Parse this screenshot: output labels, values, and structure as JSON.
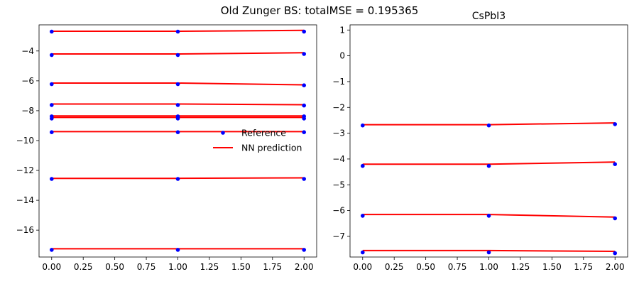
{
  "suptitle": "Old Zunger BS: totalMSE = 0.195365",
  "colors": {
    "reference": "#0000ff",
    "prediction": "#ff0000"
  },
  "chart_data": [
    {
      "type": "line",
      "title": "",
      "xlabel": "",
      "ylabel": "",
      "xlim": [
        -0.1,
        2.1
      ],
      "ylim": [
        -17.8,
        -2.25
      ],
      "xticks": [
        "0.00",
        "0.25",
        "0.50",
        "0.75",
        "1.00",
        "1.25",
        "1.50",
        "1.75",
        "2.00"
      ],
      "xtick_values": [
        0,
        0.25,
        0.5,
        0.75,
        1,
        1.25,
        1.5,
        1.75,
        2
      ],
      "yticks": [
        "−16",
        "−14",
        "−12",
        "−10",
        "−8",
        "−6",
        "−4"
      ],
      "ytick_values": [
        -16,
        -14,
        -12,
        -10,
        -8,
        -6,
        -4
      ],
      "legend": {
        "position": "center-right",
        "entries": [
          {
            "label": "Reference",
            "style": "marker"
          },
          {
            "label": "NN prediction",
            "style": "line"
          }
        ]
      },
      "x": [
        0,
        1,
        2
      ],
      "reference": [
        [
          -2.7,
          -2.7,
          -2.7
        ],
        [
          -4.27,
          -4.27,
          -4.2
        ],
        [
          -6.22,
          -6.22,
          -6.3
        ],
        [
          -7.62,
          -7.62,
          -7.65
        ],
        [
          -8.38,
          -8.38,
          -8.38
        ],
        [
          -8.52,
          -8.52,
          -8.52
        ],
        [
          -9.44,
          -9.44,
          -9.44
        ],
        [
          -12.57,
          -12.57,
          -12.57
        ],
        [
          -17.32,
          -17.32,
          -17.32
        ]
      ],
      "prediction": [
        [
          -2.68,
          -2.68,
          -2.62
        ],
        [
          -4.2,
          -4.2,
          -4.12
        ],
        [
          -6.15,
          -6.15,
          -6.27
        ],
        [
          -7.55,
          -7.55,
          -7.6
        ],
        [
          -8.35,
          -8.35,
          -8.35
        ],
        [
          -8.45,
          -8.45,
          -8.45
        ],
        [
          -9.4,
          -9.4,
          -9.4
        ],
        [
          -12.53,
          -12.53,
          -12.5
        ],
        [
          -17.25,
          -17.25,
          -17.25
        ]
      ]
    },
    {
      "type": "line",
      "title": "CsPbI3",
      "xlabel": "",
      "ylabel": "",
      "xlim": [
        -0.1,
        2.1
      ],
      "ylim": [
        -7.8,
        1.2
      ],
      "xticks": [
        "0.00",
        "0.25",
        "0.50",
        "0.75",
        "1.00",
        "1.25",
        "1.50",
        "1.75",
        "2.00"
      ],
      "xtick_values": [
        0,
        0.25,
        0.5,
        0.75,
        1,
        1.25,
        1.5,
        1.75,
        2
      ],
      "yticks": [
        "−7",
        "−6",
        "−5",
        "−4",
        "−3",
        "−2",
        "−1",
        "0",
        "1"
      ],
      "ytick_values": [
        -7,
        -6,
        -5,
        -4,
        -3,
        -2,
        -1,
        0,
        1
      ],
      "x": [
        0,
        1,
        2
      ],
      "reference": [
        [
          -2.7,
          -2.7,
          -2.65
        ],
        [
          -4.27,
          -4.27,
          -4.2
        ],
        [
          -6.2,
          -6.2,
          -6.3
        ],
        [
          -7.62,
          -7.62,
          -7.65
        ]
      ],
      "prediction": [
        [
          -2.67,
          -2.67,
          -2.6
        ],
        [
          -4.2,
          -4.2,
          -4.12
        ],
        [
          -6.15,
          -6.15,
          -6.25
        ],
        [
          -7.55,
          -7.55,
          -7.58
        ]
      ]
    }
  ]
}
